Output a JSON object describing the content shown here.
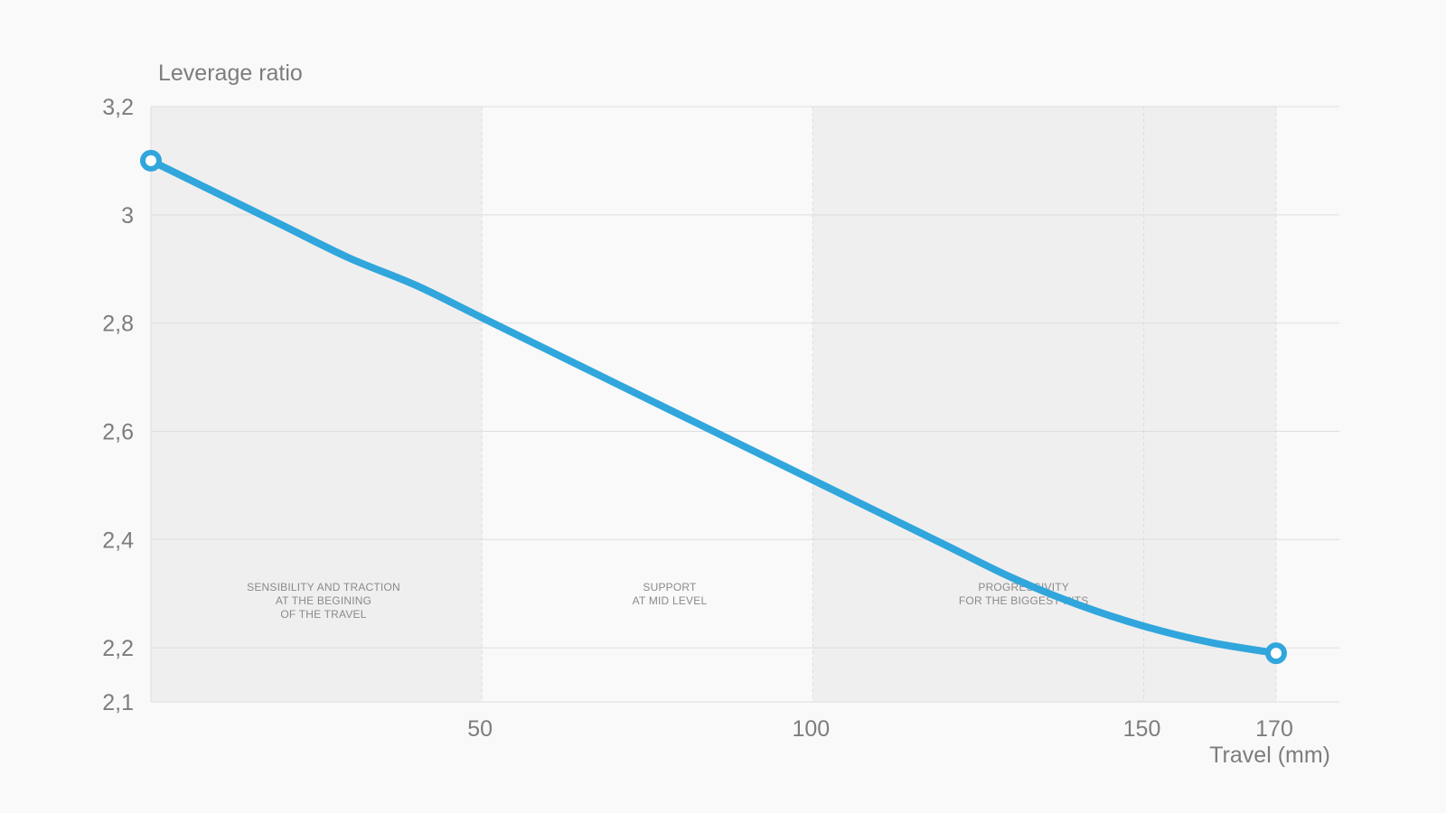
{
  "chart_data": {
    "type": "line",
    "ylabel": "Leverage ratio",
    "xlabel": "Travel (mm)",
    "xlim": [
      0,
      170
    ],
    "ylim": [
      2.1,
      3.2
    ],
    "x_ticks": [
      {
        "value": 50,
        "label": "50"
      },
      {
        "value": 100,
        "label": "100"
      },
      {
        "value": 150,
        "label": "150"
      },
      {
        "value": 170,
        "label": "170"
      }
    ],
    "y_ticks": [
      {
        "value": 3.2,
        "label": "3,2"
      },
      {
        "value": 3.0,
        "label": "3"
      },
      {
        "value": 2.8,
        "label": "2,8"
      },
      {
        "value": 2.6,
        "label": "2,6"
      },
      {
        "value": 2.4,
        "label": "2,4"
      },
      {
        "value": 2.2,
        "label": "2,2"
      },
      {
        "value": 2.1,
        "label": "2,1"
      }
    ],
    "grid": true,
    "series": [
      {
        "color": "#30a6dc",
        "x": [
          0,
          10,
          20,
          30,
          40,
          50,
          60,
          70,
          80,
          90,
          100,
          110,
          120,
          130,
          140,
          150,
          160,
          170
        ],
        "y": [
          3.1,
          3.04,
          2.98,
          2.92,
          2.87,
          2.81,
          2.75,
          2.69,
          2.63,
          2.57,
          2.51,
          2.45,
          2.39,
          2.33,
          2.28,
          2.24,
          2.21,
          2.19
        ]
      }
    ],
    "markers": [
      {
        "x": 0,
        "y": 3.1
      },
      {
        "x": 170,
        "y": 2.19
      }
    ],
    "zones": [
      {
        "from": 0,
        "to": 50,
        "shaded": true,
        "label_lines": [
          "SENSIBILITY AND TRACTION",
          "AT THE BEGINING",
          "OF THE TRAVEL"
        ]
      },
      {
        "from": 50,
        "to": 100,
        "shaded": false,
        "label_lines": [
          "SUPPORT",
          "AT MID LEVEL"
        ]
      },
      {
        "from": 100,
        "to": 170,
        "shaded": true,
        "label_lines": [
          "PROGRESSIVITY",
          "FOR THE BIGGEST HITS"
        ]
      }
    ],
    "colors": {
      "background": "#f9f9f9",
      "zone_shade": "#efefef",
      "gridline": "#dedede",
      "label_text": "#7d7d7d",
      "zone_text": "#8a8a8a",
      "line": "#30a6dc"
    }
  }
}
